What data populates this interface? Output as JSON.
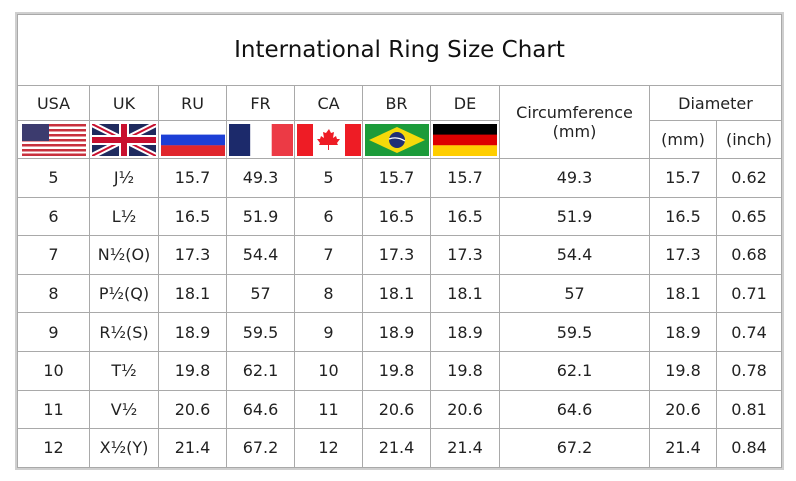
{
  "title": "International Ring Size Chart",
  "headers": {
    "countries": [
      "USA",
      "UK",
      "RU",
      "FR",
      "CA",
      "BR",
      "DE"
    ],
    "circumference": "Circumference",
    "circumference_unit": "(mm)",
    "diameter": "Diameter",
    "diameter_mm": "(mm)",
    "diameter_inch": "(inch)"
  },
  "flags": [
    "usa-flag",
    "uk-flag",
    "russia-flag",
    "france-flag",
    "canada-flag",
    "brazil-flag",
    "germany-flag"
  ],
  "rows": [
    [
      "5",
      "J½",
      "15.7",
      "49.3",
      "5",
      "15.7",
      "15.7",
      "49.3",
      "15.7",
      "0.62"
    ],
    [
      "6",
      "L½",
      "16.5",
      "51.9",
      "6",
      "16.5",
      "16.5",
      "51.9",
      "16.5",
      "0.65"
    ],
    [
      "7",
      "N½(O)",
      "17.3",
      "54.4",
      "7",
      "17.3",
      "17.3",
      "54.4",
      "17.3",
      "0.68"
    ],
    [
      "8",
      "P½(Q)",
      "18.1",
      "57",
      "8",
      "18.1",
      "18.1",
      "57",
      "18.1",
      "0.71"
    ],
    [
      "9",
      "R½(S)",
      "18.9",
      "59.5",
      "9",
      "18.9",
      "18.9",
      "59.5",
      "18.9",
      "0.74"
    ],
    [
      "10",
      "T½",
      "19.8",
      "62.1",
      "10",
      "19.8",
      "19.8",
      "62.1",
      "19.8",
      "0.78"
    ],
    [
      "11",
      "V½",
      "20.6",
      "64.6",
      "11",
      "20.6",
      "20.6",
      "64.6",
      "20.6",
      "0.81"
    ],
    [
      "12",
      "X½(Y)",
      "21.4",
      "67.2",
      "12",
      "21.4",
      "21.4",
      "67.2",
      "21.4",
      "0.84"
    ]
  ]
}
